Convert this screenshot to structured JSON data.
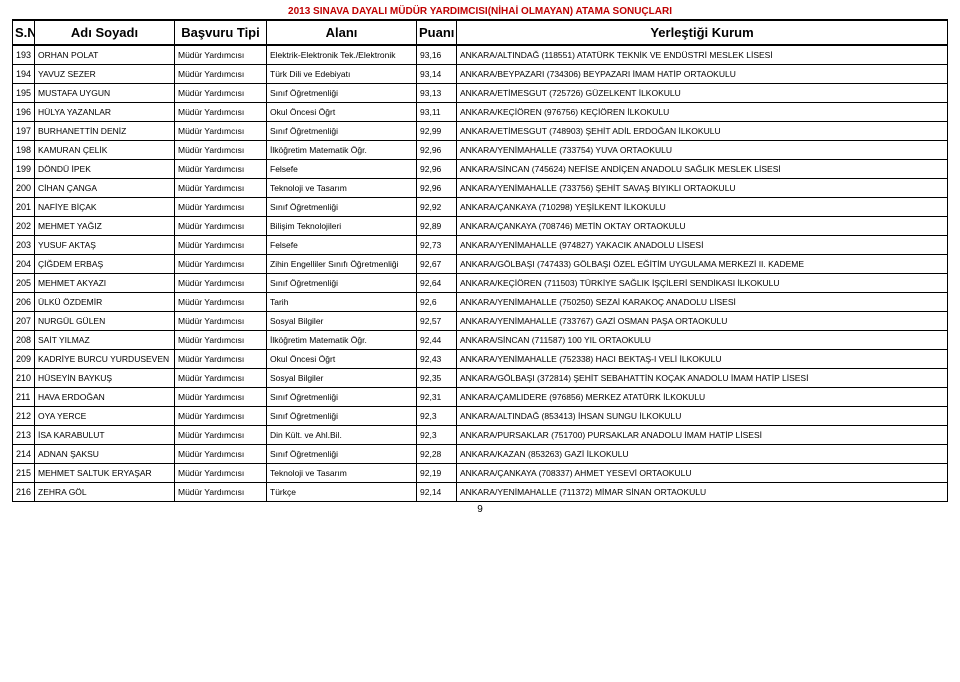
{
  "title": "2013 SINAVA DAYALI MÜDÜR YARDIMCISI(NİHAİ OLMAYAN) ATAMA  SONUÇLARI",
  "headers": {
    "sn": "S.N",
    "name": "Adı Soyadı",
    "type": "Başvuru Tipi",
    "field": "Alanı",
    "score": "Puanı",
    "place": "Yerleştiği Kurum"
  },
  "page_number": "9",
  "rows": [
    {
      "sn": "193",
      "name": "ORHAN POLAT",
      "type": "Müdür Yardımcısı",
      "field": "Elektrik-Elektronik Tek./Elektronik",
      "score": "93,16",
      "place": "ANKARA/ALTINDAĞ (118551) ATATÜRK TEKNİK VE ENDÜSTRİ MESLEK LİSESİ"
    },
    {
      "sn": "194",
      "name": "YAVUZ SEZER",
      "type": "Müdür Yardımcısı",
      "field": "Türk Dili ve Edebiyatı",
      "score": "93,14",
      "place": "ANKARA/BEYPAZARI (734306) BEYPAZARI İMAM HATİP ORTAOKULU"
    },
    {
      "sn": "195",
      "name": "MUSTAFA UYGUN",
      "type": "Müdür Yardımcısı",
      "field": "Sınıf Öğretmenliği",
      "score": "93,13",
      "place": "ANKARA/ETİMESGUT (725726) GÜZELKENT İLKOKULU"
    },
    {
      "sn": "196",
      "name": "HÜLYA YAZANLAR",
      "type": "Müdür Yardımcısı",
      "field": "Okul Öncesi Öğrt",
      "score": "93,11",
      "place": "ANKARA/KEÇİÖREN (976756) KEÇİÖREN İLKOKULU"
    },
    {
      "sn": "197",
      "name": "BURHANETTİN DENİZ",
      "type": "Müdür Yardımcısı",
      "field": "Sınıf Öğretmenliği",
      "score": "92,99",
      "place": "ANKARA/ETİMESGUT (748903) ŞEHİT ADİL ERDOĞAN İLKOKULU"
    },
    {
      "sn": "198",
      "name": "KAMURAN ÇELİK",
      "type": "Müdür Yardımcısı",
      "field": "İlköğretim Matematik Öğr.",
      "score": "92,96",
      "place": "ANKARA/YENİMAHALLE (733754) YUVA ORTAOKULU"
    },
    {
      "sn": "199",
      "name": "DÖNDÜ İPEK",
      "type": "Müdür Yardımcısı",
      "field": "Felsefe",
      "score": "92,96",
      "place": "ANKARA/SİNCAN (745624) NEFİSE ANDİÇEN ANADOLU SAĞLIK MESLEK LİSESİ"
    },
    {
      "sn": "200",
      "name": "CİHAN ÇANGA",
      "type": "Müdür Yardımcısı",
      "field": "Teknoloji ve Tasarım",
      "score": "92,96",
      "place": "ANKARA/YENİMAHALLE (733756) ŞEHİT SAVAŞ BIYIKLI ORTAOKULU"
    },
    {
      "sn": "201",
      "name": "NAFİYE BİÇAK",
      "type": "Müdür Yardımcısı",
      "field": "Sınıf Öğretmenliği",
      "score": "92,92",
      "place": "ANKARA/ÇANKAYA (710298) YEŞİLKENT İLKOKULU"
    },
    {
      "sn": "202",
      "name": "MEHMET YAĞIZ",
      "type": "Müdür Yardımcısı",
      "field": "Bilişim Teknolojileri",
      "score": "92,89",
      "place": "ANKARA/ÇANKAYA (708746) METİN OKTAY ORTAOKULU"
    },
    {
      "sn": "203",
      "name": "YUSUF AKTAŞ",
      "type": "Müdür Yardımcısı",
      "field": "Felsefe",
      "score": "92,73",
      "place": "ANKARA/YENİMAHALLE (974827) YAKACIK ANADOLU LİSESİ"
    },
    {
      "sn": "204",
      "name": "ÇİĞDEM ERBAŞ",
      "type": "Müdür Yardımcısı",
      "field": "Zihin Engelliler Sınıfı Öğretmenliği",
      "score": "92,67",
      "place": "ANKARA/GÖLBAŞI (747433) GÖLBAŞI ÖZEL EĞİTİM UYGULAMA MERKEZİ II. KADEME"
    },
    {
      "sn": "205",
      "name": "MEHMET AKYAZI",
      "type": "Müdür Yardımcısı",
      "field": "Sınıf Öğretmenliği",
      "score": "92,64",
      "place": "ANKARA/KEÇİÖREN (711503) TÜRKİYE SAĞLIK İŞÇİLERİ SENDİKASI İLKOKULU"
    },
    {
      "sn": "206",
      "name": "ÜLKÜ ÖZDEMİR",
      "type": "Müdür Yardımcısı",
      "field": "Tarih",
      "score": "92,6",
      "place": "ANKARA/YENİMAHALLE (750250) SEZAİ KARAKOÇ ANADOLU LİSESİ"
    },
    {
      "sn": "207",
      "name": "NURGÜL GÜLEN",
      "type": "Müdür Yardımcısı",
      "field": "Sosyal Bilgiler",
      "score": "92,57",
      "place": "ANKARA/YENİMAHALLE (733767) GAZİ OSMAN PAŞA ORTAOKULU"
    },
    {
      "sn": "208",
      "name": "SAİT YILMAZ",
      "type": "Müdür Yardımcısı",
      "field": "İlköğretim Matematik Öğr.",
      "score": "92,44",
      "place": "ANKARA/SİNCAN (711587) 100 YIL ORTAOKULU"
    },
    {
      "sn": "209",
      "name": "KADRİYE BURCU YURDUSEVEN",
      "type": "Müdür Yardımcısı",
      "field": "Okul Öncesi Öğrt",
      "score": "92,43",
      "place": "ANKARA/YENİMAHALLE (752338) HACI BEKTAŞ-I VELİ İLKOKULU"
    },
    {
      "sn": "210",
      "name": "HÜSEYİN BAYKUŞ",
      "type": "Müdür Yardımcısı",
      "field": "Sosyal Bilgiler",
      "score": "92,35",
      "place": "ANKARA/GÖLBAŞI (372814) ŞEHİT SEBAHATTİN KOÇAK ANADOLU İMAM HATİP LİSESİ"
    },
    {
      "sn": "211",
      "name": "HAVA ERDOĞAN",
      "type": "Müdür Yardımcısı",
      "field": "Sınıf Öğretmenliği",
      "score": "92,31",
      "place": "ANKARA/ÇAMLIDERE (976856) MERKEZ ATATÜRK İLKOKULU"
    },
    {
      "sn": "212",
      "name": "OYA YERCE",
      "type": "Müdür Yardımcısı",
      "field": "Sınıf Öğretmenliği",
      "score": "92,3",
      "place": "ANKARA/ALTINDAĞ (853413) İHSAN SUNGU İLKOKULU"
    },
    {
      "sn": "213",
      "name": "İSA KARABULUT",
      "type": "Müdür Yardımcısı",
      "field": "Din Kült. ve Ahl.Bil.",
      "score": "92,3",
      "place": "ANKARA/PURSAKLAR (751700) PURSAKLAR ANADOLU İMAM HATİP LİSESİ"
    },
    {
      "sn": "214",
      "name": "ADNAN ŞAKSU",
      "type": "Müdür Yardımcısı",
      "field": "Sınıf Öğretmenliği",
      "score": "92,28",
      "place": "ANKARA/KAZAN (853263) GAZİ İLKOKULU"
    },
    {
      "sn": "215",
      "name": "MEHMET SALTUK ERYAŞAR",
      "type": "Müdür Yardımcısı",
      "field": "Teknoloji ve Tasarım",
      "score": "92,19",
      "place": "ANKARA/ÇANKAYA (708337) AHMET YESEVİ ORTAOKULU"
    },
    {
      "sn": "216",
      "name": "ZEHRA GÖL",
      "type": "Müdür Yardımcısı",
      "field": "Türkçe",
      "score": "92,14",
      "place": "ANKARA/YENİMAHALLE (711372) MİMAR SİNAN ORTAOKULU"
    }
  ]
}
